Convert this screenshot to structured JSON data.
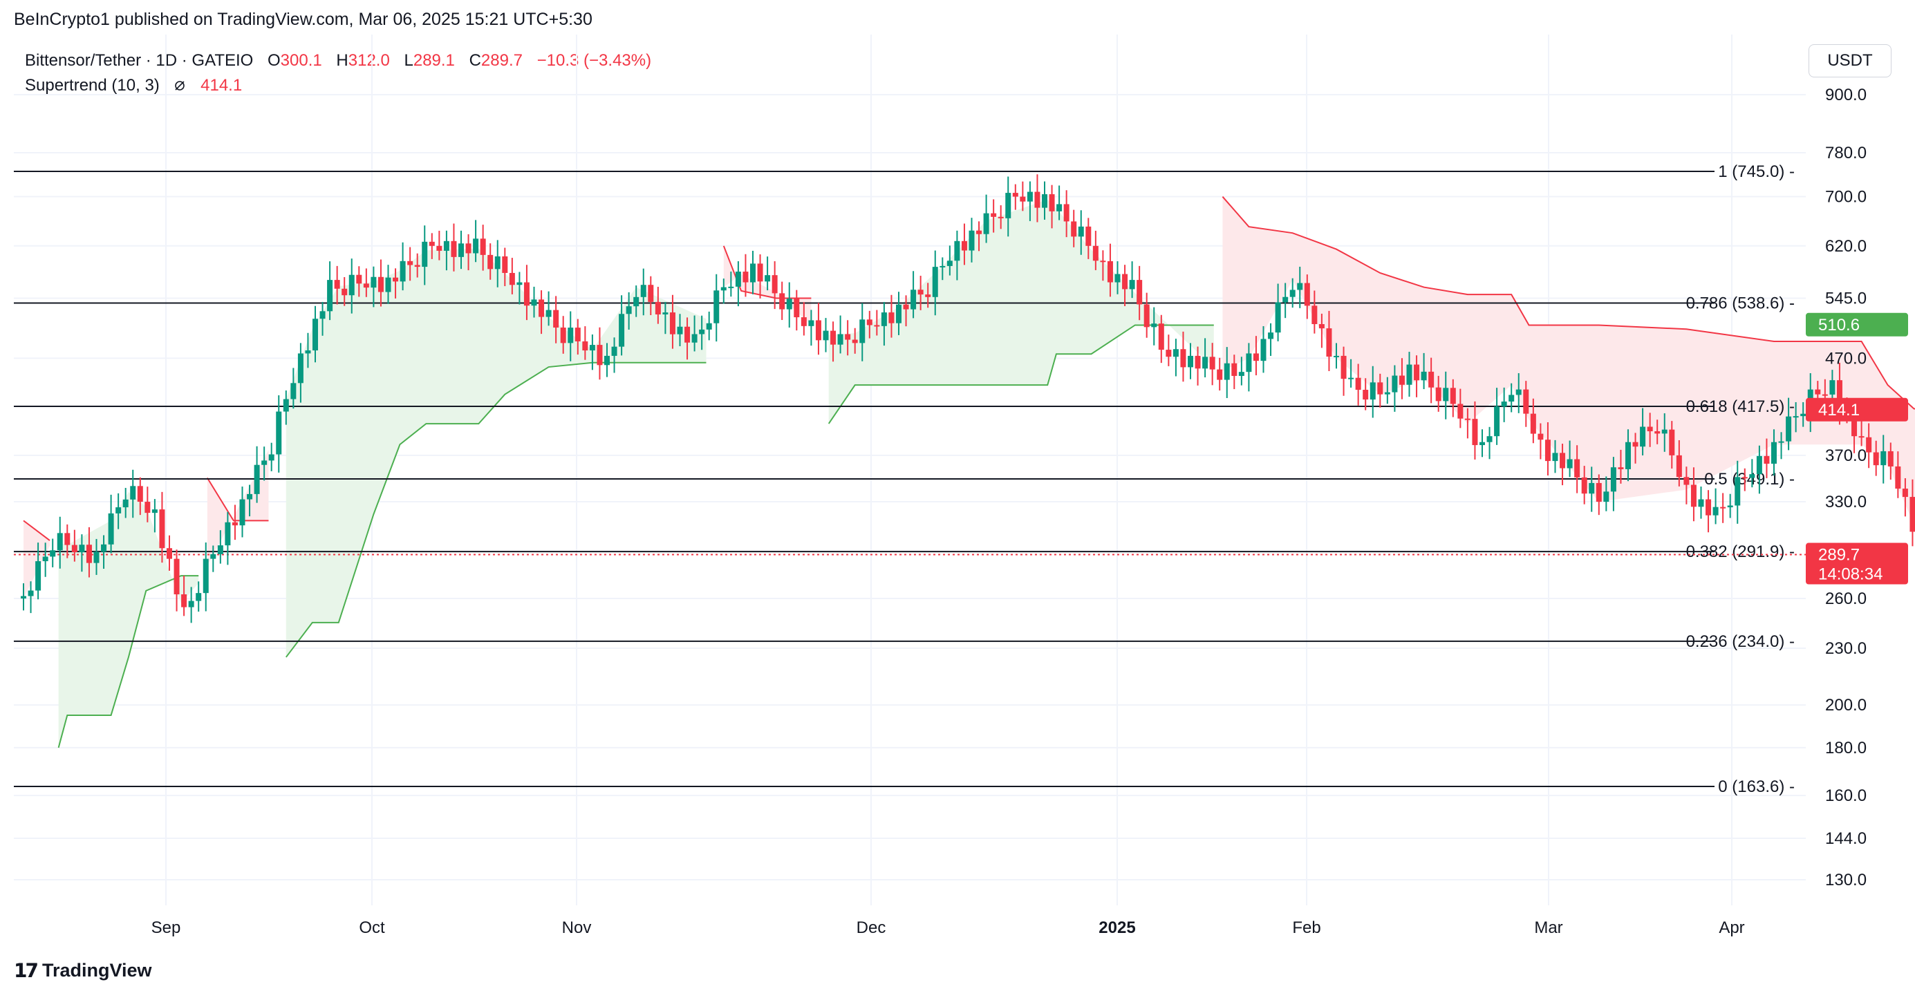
{
  "publisher_line": "BeInCrypto1 published on TradingView.com, Mar 06, 2025 15:21 UTC+5:30",
  "legend": {
    "symbol": "Bittensor/Tether · 1D · GATEIO",
    "open_label": "O",
    "open_value": "300.1",
    "high_label": "H",
    "high_value": "312.0",
    "low_label": "L",
    "low_value": "289.1",
    "close_label": "C",
    "close_value": "289.7",
    "change": "−10.3 (−3.43%)",
    "indicator": "Supertrend (10, 3)",
    "indicator_icon": "eye-off-icon",
    "indicator_value": "414.1"
  },
  "currency_button": "USDT",
  "footer_logo": "TradingView",
  "colors": {
    "up": "#089981",
    "down": "#f23645",
    "supertrend_up": "#4caf50",
    "supertrend_down": "#f23645",
    "supertrend_up_fill": "#e8f5e9",
    "supertrend_down_fill": "#fde8ea",
    "grid": "#f0f3fa",
    "fib_line": "#131722"
  },
  "chart_data": {
    "type": "candlestick",
    "title": "Bittensor/Tether · 1D · GATEIO",
    "y_axis": {
      "scale": "log",
      "ticks": [
        "900.0",
        "780.0",
        "700.0",
        "620.0",
        "545.0",
        "470.0",
        "370.0",
        "330.0",
        "260.0",
        "230.0",
        "200.0",
        "180.0",
        "160.0",
        "144.0",
        "130.0"
      ]
    },
    "x_axis": {
      "ticks": [
        "Sep",
        "Oct",
        "Nov",
        "Dec",
        "2025",
        "Feb",
        "Mar",
        "Apr"
      ]
    },
    "price_badges": [
      {
        "value": "510.6",
        "color": "#4caf50"
      },
      {
        "value": "414.1",
        "color": "#f23645"
      },
      {
        "value": "289.7",
        "sub": "14:08:34",
        "color": "#f23645"
      }
    ],
    "fibonacci_levels": [
      {
        "label": "1 (745.0)",
        "value": 745.0
      },
      {
        "label": "0.786 (538.6)",
        "value": 538.6
      },
      {
        "label": "0.618 (417.5)",
        "value": 417.5
      },
      {
        "label": "0.5 (349.1)",
        "value": 349.1
      },
      {
        "label": "0.382 (291.9)",
        "value": 291.9
      },
      {
        "label": "0.236 (234.0)",
        "value": 234.0
      },
      {
        "label": "0 (163.6)",
        "value": 163.6
      }
    ],
    "current_price": 289.7,
    "supertrend": [
      {
        "d": 0,
        "dir": "down",
        "v": 315
      },
      {
        "d": 3,
        "dir": "down",
        "v": 300
      },
      {
        "d": 4,
        "dir": "up",
        "v": 180
      },
      {
        "d": 5,
        "dir": "up",
        "v": 195
      },
      {
        "d": 10,
        "dir": "up",
        "v": 195
      },
      {
        "d": 12,
        "dir": "up",
        "v": 225
      },
      {
        "d": 14,
        "dir": "up",
        "v": 265
      },
      {
        "d": 18,
        "dir": "up",
        "v": 275
      },
      {
        "d": 20,
        "dir": "up",
        "v": 275
      },
      {
        "d": 21,
        "dir": "down",
        "v": 350
      },
      {
        "d": 24,
        "dir": "down",
        "v": 315
      },
      {
        "d": 28,
        "dir": "down",
        "v": 315
      },
      {
        "d": 30,
        "dir": "up",
        "v": 225
      },
      {
        "d": 33,
        "dir": "up",
        "v": 245
      },
      {
        "d": 36,
        "dir": "up",
        "v": 245
      },
      {
        "d": 40,
        "dir": "up",
        "v": 320
      },
      {
        "d": 43,
        "dir": "up",
        "v": 380
      },
      {
        "d": 46,
        "dir": "up",
        "v": 400
      },
      {
        "d": 52,
        "dir": "up",
        "v": 400
      },
      {
        "d": 55,
        "dir": "up",
        "v": 430
      },
      {
        "d": 60,
        "dir": "up",
        "v": 460
      },
      {
        "d": 65,
        "dir": "up",
        "v": 465
      },
      {
        "d": 70,
        "dir": "up",
        "v": 465
      },
      {
        "d": 78,
        "dir": "up",
        "v": 465
      },
      {
        "d": 80,
        "dir": "down",
        "v": 620
      },
      {
        "d": 82,
        "dir": "down",
        "v": 555
      },
      {
        "d": 86,
        "dir": "down",
        "v": 545
      },
      {
        "d": 90,
        "dir": "down",
        "v": 545
      },
      {
        "d": 92,
        "dir": "up",
        "v": 400
      },
      {
        "d": 95,
        "dir": "up",
        "v": 440
      },
      {
        "d": 100,
        "dir": "up",
        "v": 440
      },
      {
        "d": 105,
        "dir": "up",
        "v": 440
      },
      {
        "d": 110,
        "dir": "up",
        "v": 440
      },
      {
        "d": 117,
        "dir": "up",
        "v": 440
      },
      {
        "d": 118,
        "dir": "up",
        "v": 475
      },
      {
        "d": 122,
        "dir": "up",
        "v": 475
      },
      {
        "d": 127,
        "dir": "up",
        "v": 510
      },
      {
        "d": 136,
        "dir": "up",
        "v": 510
      },
      {
        "d": 137,
        "dir": "down",
        "v": 700
      },
      {
        "d": 140,
        "dir": "down",
        "v": 650
      },
      {
        "d": 145,
        "dir": "down",
        "v": 640
      },
      {
        "d": 150,
        "dir": "down",
        "v": 615
      },
      {
        "d": 155,
        "dir": "down",
        "v": 580
      },
      {
        "d": 160,
        "dir": "down",
        "v": 560
      },
      {
        "d": 165,
        "dir": "down",
        "v": 550
      },
      {
        "d": 170,
        "dir": "down",
        "v": 550
      },
      {
        "d": 172,
        "dir": "down",
        "v": 510
      },
      {
        "d": 180,
        "dir": "down",
        "v": 510
      },
      {
        "d": 190,
        "dir": "down",
        "v": 505
      },
      {
        "d": 200,
        "dir": "down",
        "v": 490
      },
      {
        "d": 210,
        "dir": "down",
        "v": 490
      },
      {
        "d": 213,
        "dir": "down",
        "v": 440
      },
      {
        "d": 216,
        "dir": "down",
        "v": 415
      },
      {
        "d": 220,
        "dir": "down",
        "v": 414.1
      }
    ]
  }
}
